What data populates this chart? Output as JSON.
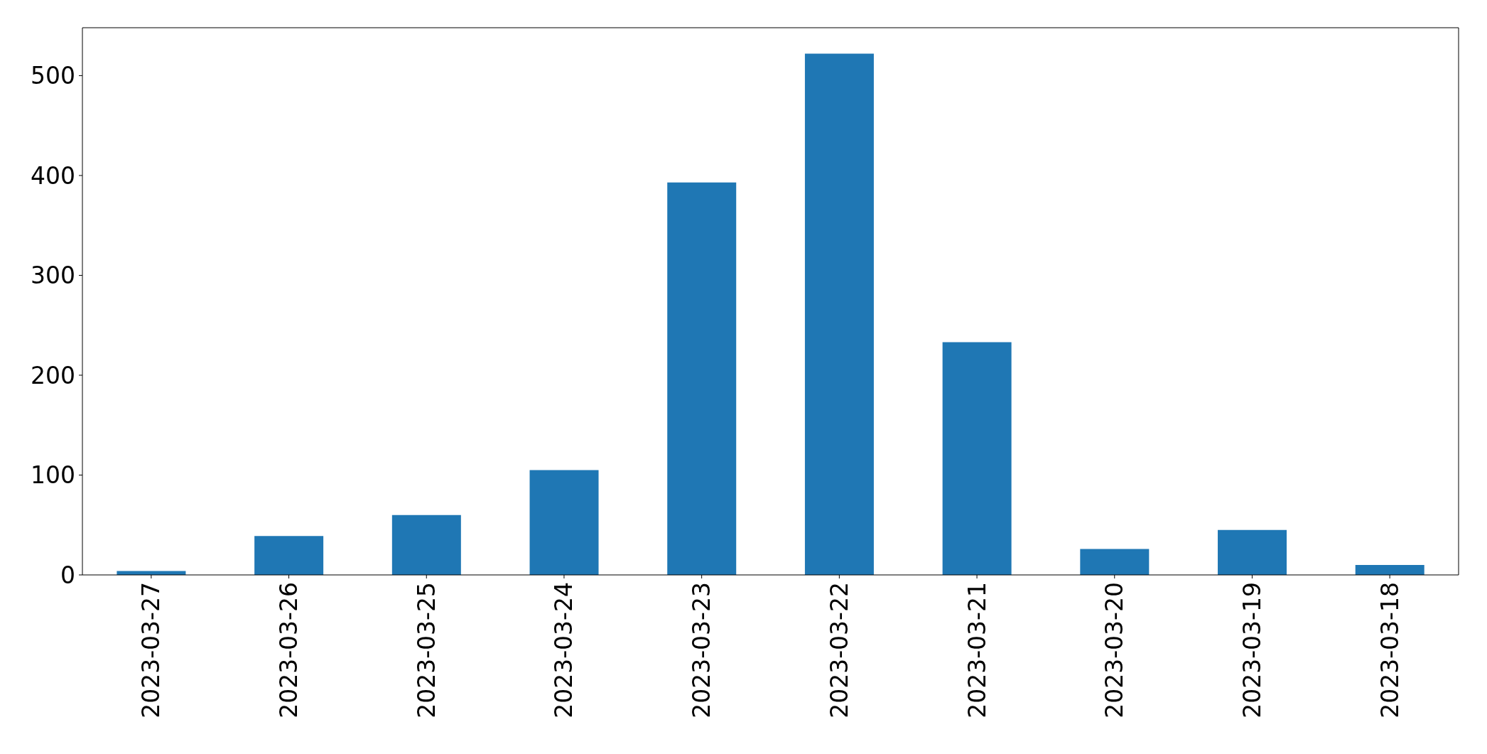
{
  "chart_data": {
    "type": "bar",
    "categories": [
      "2023-03-27",
      "2023-03-26",
      "2023-03-25",
      "2023-03-24",
      "2023-03-23",
      "2023-03-22",
      "2023-03-21",
      "2023-03-20",
      "2023-03-19",
      "2023-03-18"
    ],
    "values": [
      4,
      39,
      60,
      105,
      393,
      522,
      233,
      26,
      45,
      10
    ],
    "color": "#1f77b4",
    "ylim": [
      0,
      548
    ],
    "yticks": [
      0,
      100,
      200,
      300,
      400,
      500
    ]
  }
}
